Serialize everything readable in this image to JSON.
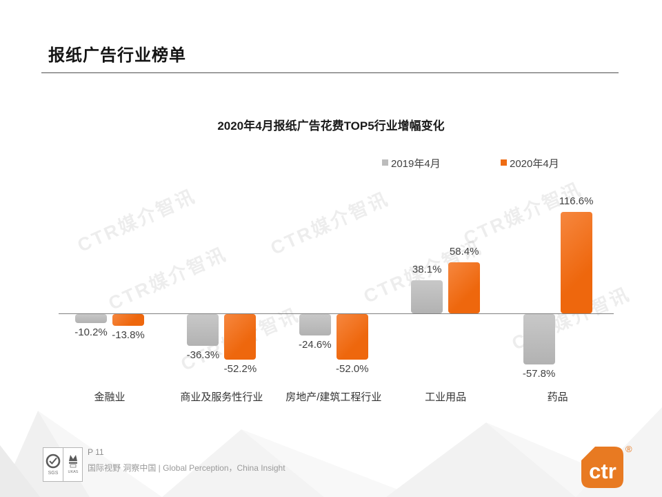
{
  "header": {
    "title": "报纸广告行业榜单"
  },
  "chart_data": {
    "type": "bar",
    "title": "2020年4月报纸广告花费TOP5行业增幅变化",
    "categories": [
      "金融业",
      "商业及服务性行业",
      "房地产/建筑工程行业",
      "工业用品",
      "药品"
    ],
    "series": [
      {
        "name": "2019年4月",
        "color": "#bcbcbc",
        "values": [
          -10.2,
          -36.3,
          -24.6,
          38.1,
          -57.8
        ]
      },
      {
        "name": "2020年4月",
        "color": "#ee6c14",
        "values": [
          -13.8,
          -52.2,
          -52.0,
          58.4,
          116.6
        ]
      }
    ],
    "value_suffix": "%",
    "ylim": [
      -80,
      135
    ],
    "grid": false,
    "legend_position": "top-right",
    "zero_baseline": true
  },
  "watermark": {
    "text": "CTR媒介智讯"
  },
  "footer": {
    "page_number": "P 11",
    "tagline": "国际视野 洞察中国 |  Global Perception，China Insight",
    "cert_badges": [
      "SGS",
      "UKAS"
    ],
    "logo_text": "ctr",
    "logo_registered": "®",
    "logo_color": "#e87a22"
  }
}
